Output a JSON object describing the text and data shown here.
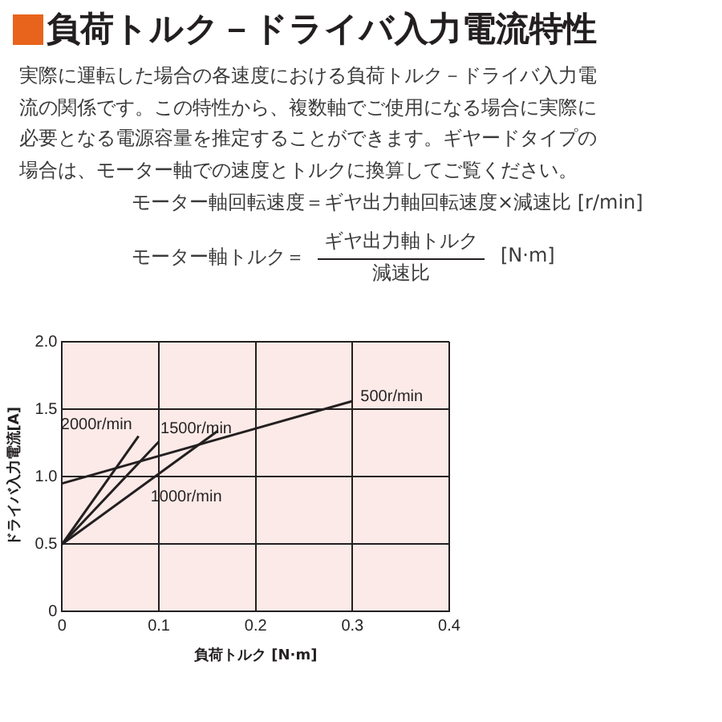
{
  "chart_data": {
    "type": "line",
    "title": "負荷トルク－ドライバ入力電流特性",
    "subtitle": "実際に運転した場合の各速度における負荷トルク－ドライバ入力電流の関係です。この特性から、複数軸でご使用になる場合に実際に必要となる電源容量を推定することができます。ギヤードタイプの場合は、モーター軸での速度とトルクに換算してご覧ください。",
    "annotations": [
      "モーター軸回転速度＝ギヤ出力軸回転速度×減速比 [r/min]",
      "モーター軸トルク＝",
      "ギヤ出力軸トルク",
      "減速比",
      "[N·m]"
    ],
    "xlabel": "負荷トルク [N·m]",
    "ylabel": "ドライバ入力電流[A]",
    "series": [
      {
        "name": "500r/min",
        "color": "#231f20",
        "x": [
          0,
          0.3
        ],
        "values": [
          0.95,
          1.56
        ]
      },
      {
        "name": "2000r/min",
        "color": "#231f20",
        "x": [
          0,
          0.079
        ],
        "values": [
          0.5,
          1.3
        ]
      },
      {
        "name": "1500r/min",
        "color": "#231f20",
        "x": [
          0,
          0.1
        ],
        "values": [
          0.5,
          1.26
        ]
      },
      {
        "name": "1000r/min",
        "color": "#231f20",
        "x": [
          0,
          0.161
        ],
        "values": [
          0.5,
          1.34
        ]
      }
    ],
    "xlim": [
      0,
      0.4
    ],
    "xticks": [
      0,
      0.1,
      0.2,
      0.3,
      0.4
    ],
    "ylim": [
      0,
      2
    ],
    "yticks": [
      0,
      0.5,
      {
        "value": 1,
        "label": "1.0"
      },
      1.5,
      {
        "value": 2,
        "label": "2.0"
      }
    ],
    "grid": true,
    "legend": false
  }
}
